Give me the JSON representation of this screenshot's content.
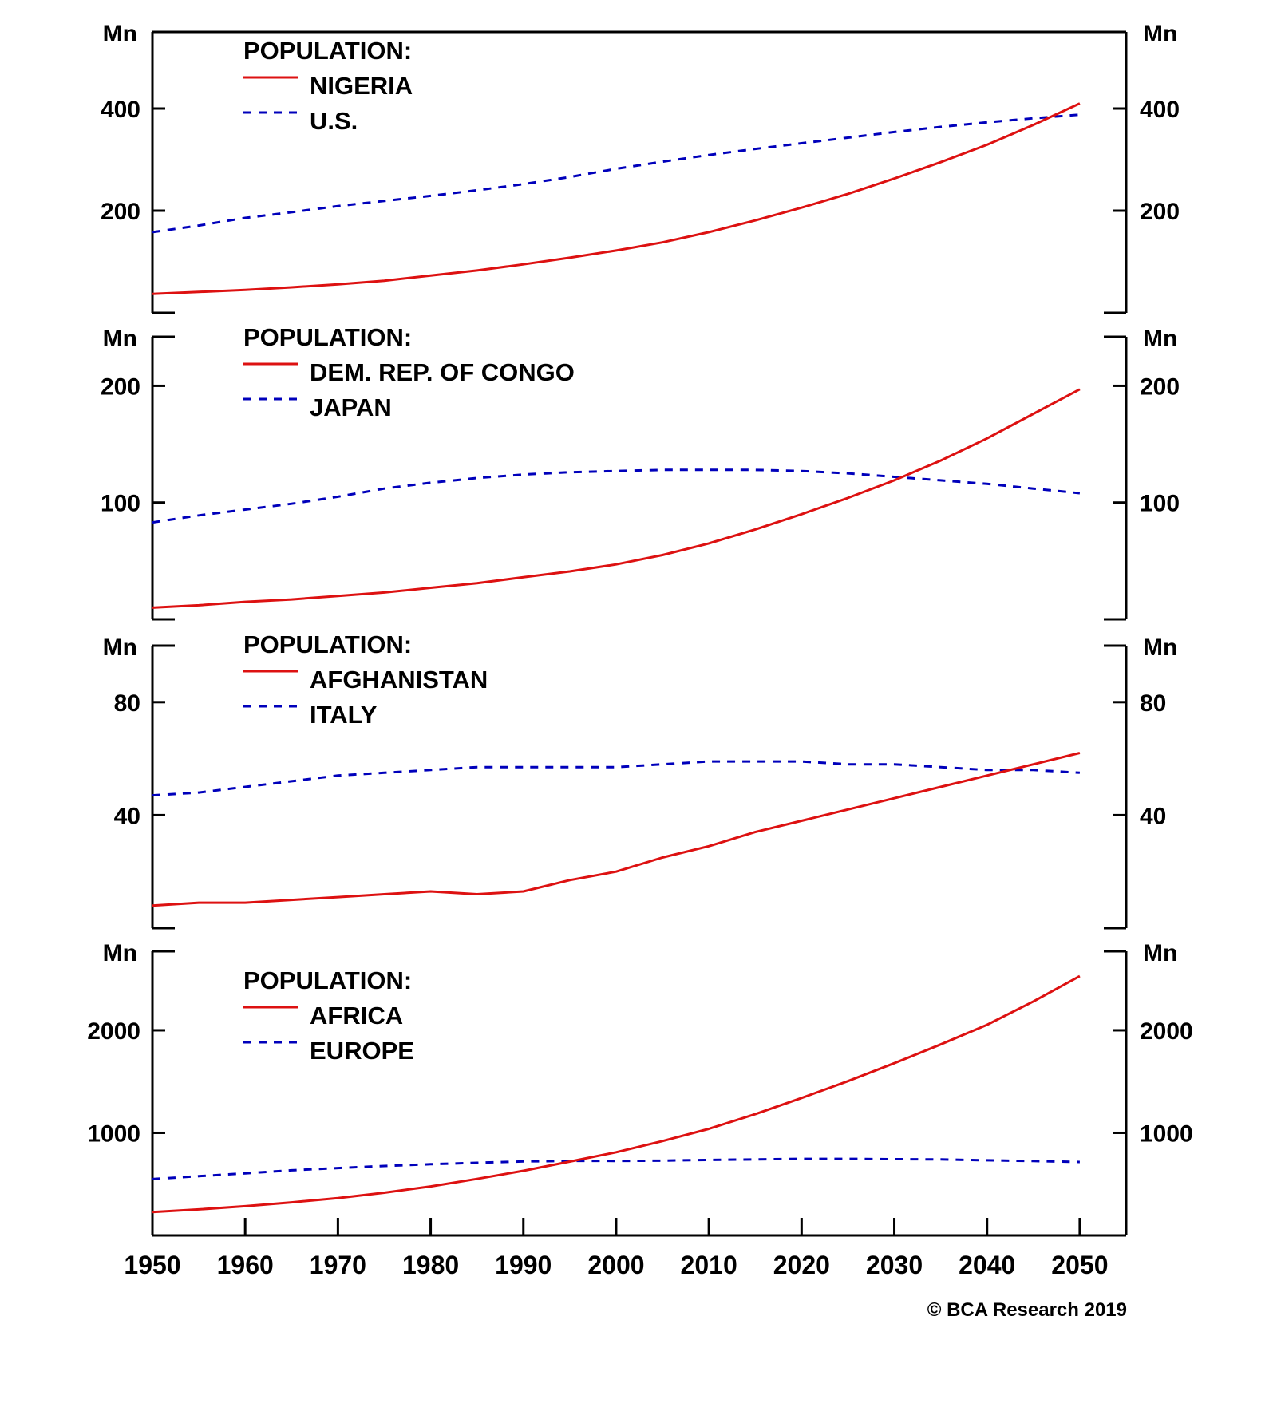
{
  "chart_data": {
    "type": "line",
    "unit_label": "Mn",
    "x": [
      1950,
      1955,
      1960,
      1965,
      1970,
      1975,
      1980,
      1985,
      1990,
      1995,
      2000,
      2005,
      2010,
      2015,
      2020,
      2025,
      2030,
      2035,
      2040,
      2045,
      2050
    ],
    "x_ticks": [
      1950,
      1960,
      1970,
      1980,
      1990,
      2000,
      2010,
      2020,
      2030,
      2040,
      2050
    ],
    "x_tick_labels": [
      "1950",
      "1960",
      "1970",
      "1980",
      "1990",
      "2000",
      "2010",
      "2020",
      "2030",
      "2040",
      "2050"
    ],
    "xlim": [
      1950,
      2055
    ],
    "footer": "© BCA Research 2019",
    "colors": {
      "solid": "#dd1111",
      "dashed": "#0000bb"
    },
    "panels": [
      {
        "legend_title": "POPULATION:",
        "ylim": [
          0,
          550
        ],
        "y_ticks": [
          200,
          400
        ],
        "y_tick_labels": [
          "200",
          "400"
        ],
        "grid": false,
        "legend_position": "top-left",
        "series": [
          {
            "name": "NIGERIA",
            "style": "solid",
            "values": [
              37,
              41,
              45,
              50,
              56,
              63,
              73,
              83,
              95,
              108,
              122,
              138,
              158,
              181,
              206,
              233,
              263,
              295,
              329,
              368,
              410
            ]
          },
          {
            "name": "U.S.",
            "style": "dashed",
            "values": [
              158,
              171,
              186,
              197,
              209,
              219,
              229,
              240,
              252,
              266,
              282,
              296,
              309,
              321,
              332,
              343,
              354,
              364,
              373,
              381,
              388
            ]
          }
        ]
      },
      {
        "legend_title": "POPULATION:",
        "ylim": [
          0,
          242
        ],
        "y_ticks": [
          100,
          200
        ],
        "y_tick_labels": [
          "100",
          "200"
        ],
        "grid": false,
        "legend_position": "top-left",
        "series": [
          {
            "name": "DEM. REP. OF CONGO",
            "style": "solid",
            "values": [
              10,
              12,
              15,
              17,
              20,
              23,
              27,
              31,
              36,
              41,
              47,
              55,
              65,
              77,
              90,
              104,
              119,
              136,
              155,
              176,
              197
            ]
          },
          {
            "name": "JAPAN",
            "style": "dashed",
            "values": [
              83,
              89,
              94,
              99,
              105,
              112,
              117,
              121,
              124,
              126,
              127,
              128,
              128,
              128,
              127,
              125,
              122,
              119,
              116,
              112,
              108
            ]
          }
        ]
      },
      {
        "legend_title": "POPULATION:",
        "ylim": [
          0,
          100
        ],
        "y_ticks": [
          40,
          80
        ],
        "y_tick_labels": [
          "40",
          "80"
        ],
        "grid": false,
        "legend_position": "top-left",
        "series": [
          {
            "name": "AFGHANISTAN",
            "style": "solid",
            "values": [
              8,
              9,
              9,
              10,
              11,
              12,
              13,
              12,
              13,
              17,
              20,
              25,
              29,
              34,
              38,
              42,
              46,
              50,
              54,
              58,
              62
            ]
          },
          {
            "name": "ITALY",
            "style": "dashed",
            "values": [
              47,
              48,
              50,
              52,
              54,
              55,
              56,
              57,
              57,
              57,
              57,
              58,
              59,
              59,
              59,
              58,
              58,
              57,
              56,
              56,
              55
            ]
          }
        ]
      },
      {
        "legend_title": "POPULATION:",
        "ylim": [
          0,
          2770
        ],
        "y_ticks": [
          1000,
          2000
        ],
        "y_tick_labels": [
          "1000",
          "2000"
        ],
        "grid": false,
        "legend_position": "top-left",
        "series": [
          {
            "name": "AFRICA",
            "style": "solid",
            "values": [
              228,
              254,
              285,
              322,
              364,
              416,
              478,
              551,
              630,
              720,
              811,
              920,
              1039,
              1182,
              1340,
              1504,
              1679,
              1862,
              2053,
              2281,
              2528
            ]
          },
          {
            "name": "EUROPE",
            "style": "dashed",
            "values": [
              549,
              577,
              605,
              635,
              657,
              677,
              694,
              708,
              721,
              727,
              726,
              729,
              736,
              741,
              746,
              746,
              743,
              741,
              732,
              725,
              716
            ]
          }
        ]
      }
    ]
  }
}
